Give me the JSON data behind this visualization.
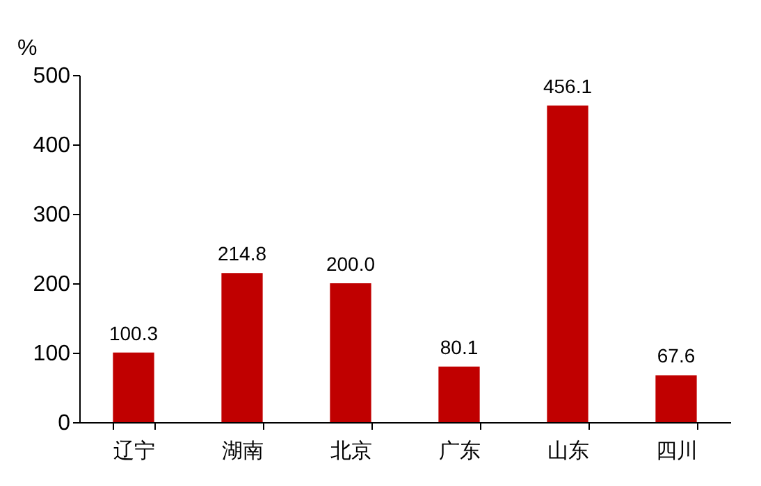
{
  "chart_data": {
    "type": "bar",
    "ylabel": "%",
    "categories": [
      "辽宁",
      "湖南",
      "北京",
      "广东",
      "山东",
      "四川"
    ],
    "values": [
      100.3,
      214.8,
      200.0,
      80.1,
      456.1,
      67.6
    ],
    "value_labels": [
      "100.3",
      "214.8",
      "200.0",
      "80.1",
      "456.1",
      "67.6"
    ],
    "color": "#c00000",
    "ylim": [
      0,
      500
    ],
    "yticks": [
      0,
      100,
      200,
      300,
      400,
      500
    ],
    "grid": false
  }
}
